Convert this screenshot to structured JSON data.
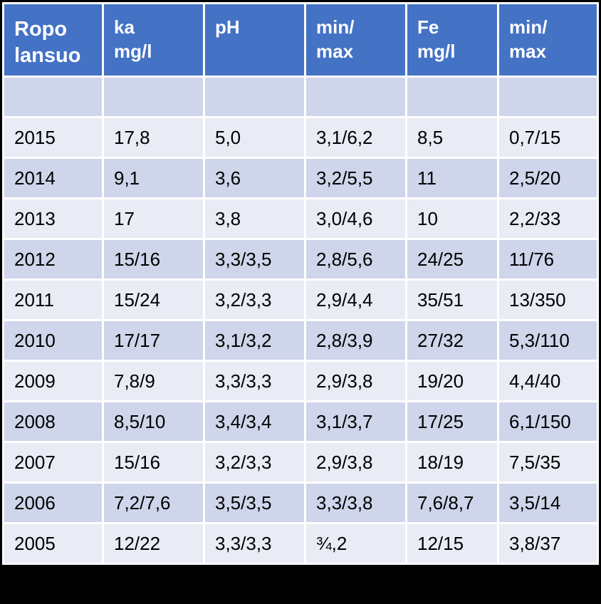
{
  "colors": {
    "header_bg": "#4472c4",
    "row_odd_bg": "#cfd5ea",
    "row_even_bg": "#e9ebf5",
    "frame": "#000000"
  },
  "table": {
    "headers": [
      {
        "line1": "Ropo",
        "line2": "lansuo"
      },
      {
        "line1": "ka",
        "line2": "mg/l"
      },
      {
        "line1": "pH",
        "line2": ""
      },
      {
        "line1": "min/",
        "line2": "max"
      },
      {
        "line1": "Fe",
        "line2": "mg/l"
      },
      {
        "line1": "min/",
        "line2": "max"
      }
    ],
    "rows": [
      [
        "",
        "",
        "",
        "",
        "",
        ""
      ],
      [
        "2015",
        "17,8",
        "5,0",
        "3,1/6,2",
        "8,5",
        "0,7/15"
      ],
      [
        "2014",
        "9,1",
        "3,6",
        "3,2/5,5",
        "11",
        "2,5/20"
      ],
      [
        "2013",
        "17",
        "3,8",
        "3,0/4,6",
        "10",
        "2,2/33"
      ],
      [
        "2012",
        "15/16",
        "3,3/3,5",
        "2,8/5,6",
        "24/25",
        "11/76"
      ],
      [
        "2011",
        "15/24",
        "3,2/3,3",
        "2,9/4,4",
        "35/51",
        "13/350"
      ],
      [
        "2010",
        "17/17",
        "3,1/3,2",
        "2,8/3,9",
        "27/32",
        "5,3/110"
      ],
      [
        "2009",
        "7,8/9",
        "3,3/3,3",
        "2,9/3,8",
        "19/20",
        "4,4/40"
      ],
      [
        "2008",
        "8,5/10",
        "3,4/3,4",
        "3,1/3,7",
        "17/25",
        "6,1/150"
      ],
      [
        "2007",
        "15/16",
        "3,2/3,3",
        "2,9/3,8",
        "18/19",
        "7,5/35"
      ],
      [
        "2006",
        "7,2/7,6",
        "3,5/3,5",
        "3,3/3,8",
        "7,6/8,7",
        "3,5/14"
      ],
      [
        "2005",
        "12/22",
        "3,3/3,3",
        "¾,2",
        "12/15",
        "3,8/37"
      ]
    ]
  }
}
